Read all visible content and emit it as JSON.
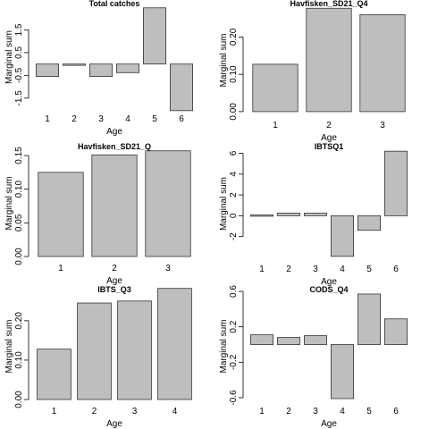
{
  "y_axis_label": "Marginal sum",
  "x_axis_label": "Age",
  "colors": {
    "bar_fill": "#bebebe",
    "bar_stroke": "#333333"
  },
  "chart_data": [
    {
      "type": "bar",
      "title": "Total catches",
      "categories": [
        "1",
        "2",
        "3",
        "4",
        "5",
        "6"
      ],
      "values": [
        -0.55,
        -0.05,
        -0.55,
        -0.38,
        2.47,
        -2.05
      ],
      "yticks": [
        -1.5,
        -0.5,
        0.5,
        1.5
      ],
      "ytick_labels": [
        "-1.5",
        "-0.5",
        "0.5",
        "1.5"
      ],
      "ylim": [
        -1.9,
        2.5
      ],
      "xlabel": "Age",
      "ylabel": "Marginal sum"
    },
    {
      "type": "bar",
      "title": "Havfisken_SD21_Q4",
      "categories": [
        "1",
        "2",
        "3"
      ],
      "values": [
        0.127,
        0.277,
        0.26
      ],
      "yticks": [
        0.0,
        0.1,
        0.2
      ],
      "ytick_labels": [
        "0.00",
        "0.10",
        "0.20"
      ],
      "ylim": [
        -0.005,
        0.28
      ],
      "xlabel": "Age",
      "ylabel": "Marginal sum"
    },
    {
      "type": "bar",
      "title": "Havfisken_SD21_Q",
      "categories": [
        "1",
        "2",
        "3"
      ],
      "values": [
        0.125,
        0.151,
        0.157
      ],
      "yticks": [
        0.0,
        0.05,
        0.1,
        0.15
      ],
      "ytick_labels": [
        "0.00",
        "0.05",
        "0.10",
        "0.15"
      ],
      "ylim": [
        0.0,
        0.158
      ],
      "xlabel": "Age",
      "ylabel": "Marginal sum"
    },
    {
      "type": "bar",
      "title": "IBTSQ1",
      "categories": [
        "1",
        "2",
        "3",
        "4",
        "5",
        "6"
      ],
      "values": [
        0.08,
        0.25,
        0.25,
        -3.9,
        -1.4,
        6.2
      ],
      "yticks": [
        -2,
        0,
        2,
        4,
        6
      ],
      "ytick_labels": [
        "-2",
        "0",
        "2",
        "4",
        "6"
      ],
      "ylim": [
        -4.0,
        6.3
      ],
      "xlabel": "Age",
      "ylabel": "Marginal sum"
    },
    {
      "type": "bar",
      "title": "IBTS_Q3",
      "categories": [
        "1",
        "2",
        "3",
        "4"
      ],
      "values": [
        0.128,
        0.245,
        0.25,
        0.282
      ],
      "yticks": [
        0.0,
        0.1,
        0.2
      ],
      "ytick_labels": [
        "0.00",
        "0.10",
        "0.20"
      ],
      "ylim": [
        0.0,
        0.27
      ],
      "xlabel": "Age",
      "ylabel": "Marginal sum"
    },
    {
      "type": "bar",
      "title": "CODS_Q4",
      "categories": [
        "1",
        "2",
        "3",
        "4",
        "5",
        "6"
      ],
      "values": [
        0.11,
        0.08,
        0.1,
        -0.61,
        0.57,
        0.29
      ],
      "yticks": [
        -0.6,
        -0.2,
        0.2,
        0.6
      ],
      "ytick_labels": [
        "-0.6",
        "-0.2",
        "0.2",
        "0.6"
      ],
      "ylim": [
        -0.62,
        0.58
      ],
      "xlabel": "Age",
      "ylabel": "Marginal sum"
    }
  ]
}
